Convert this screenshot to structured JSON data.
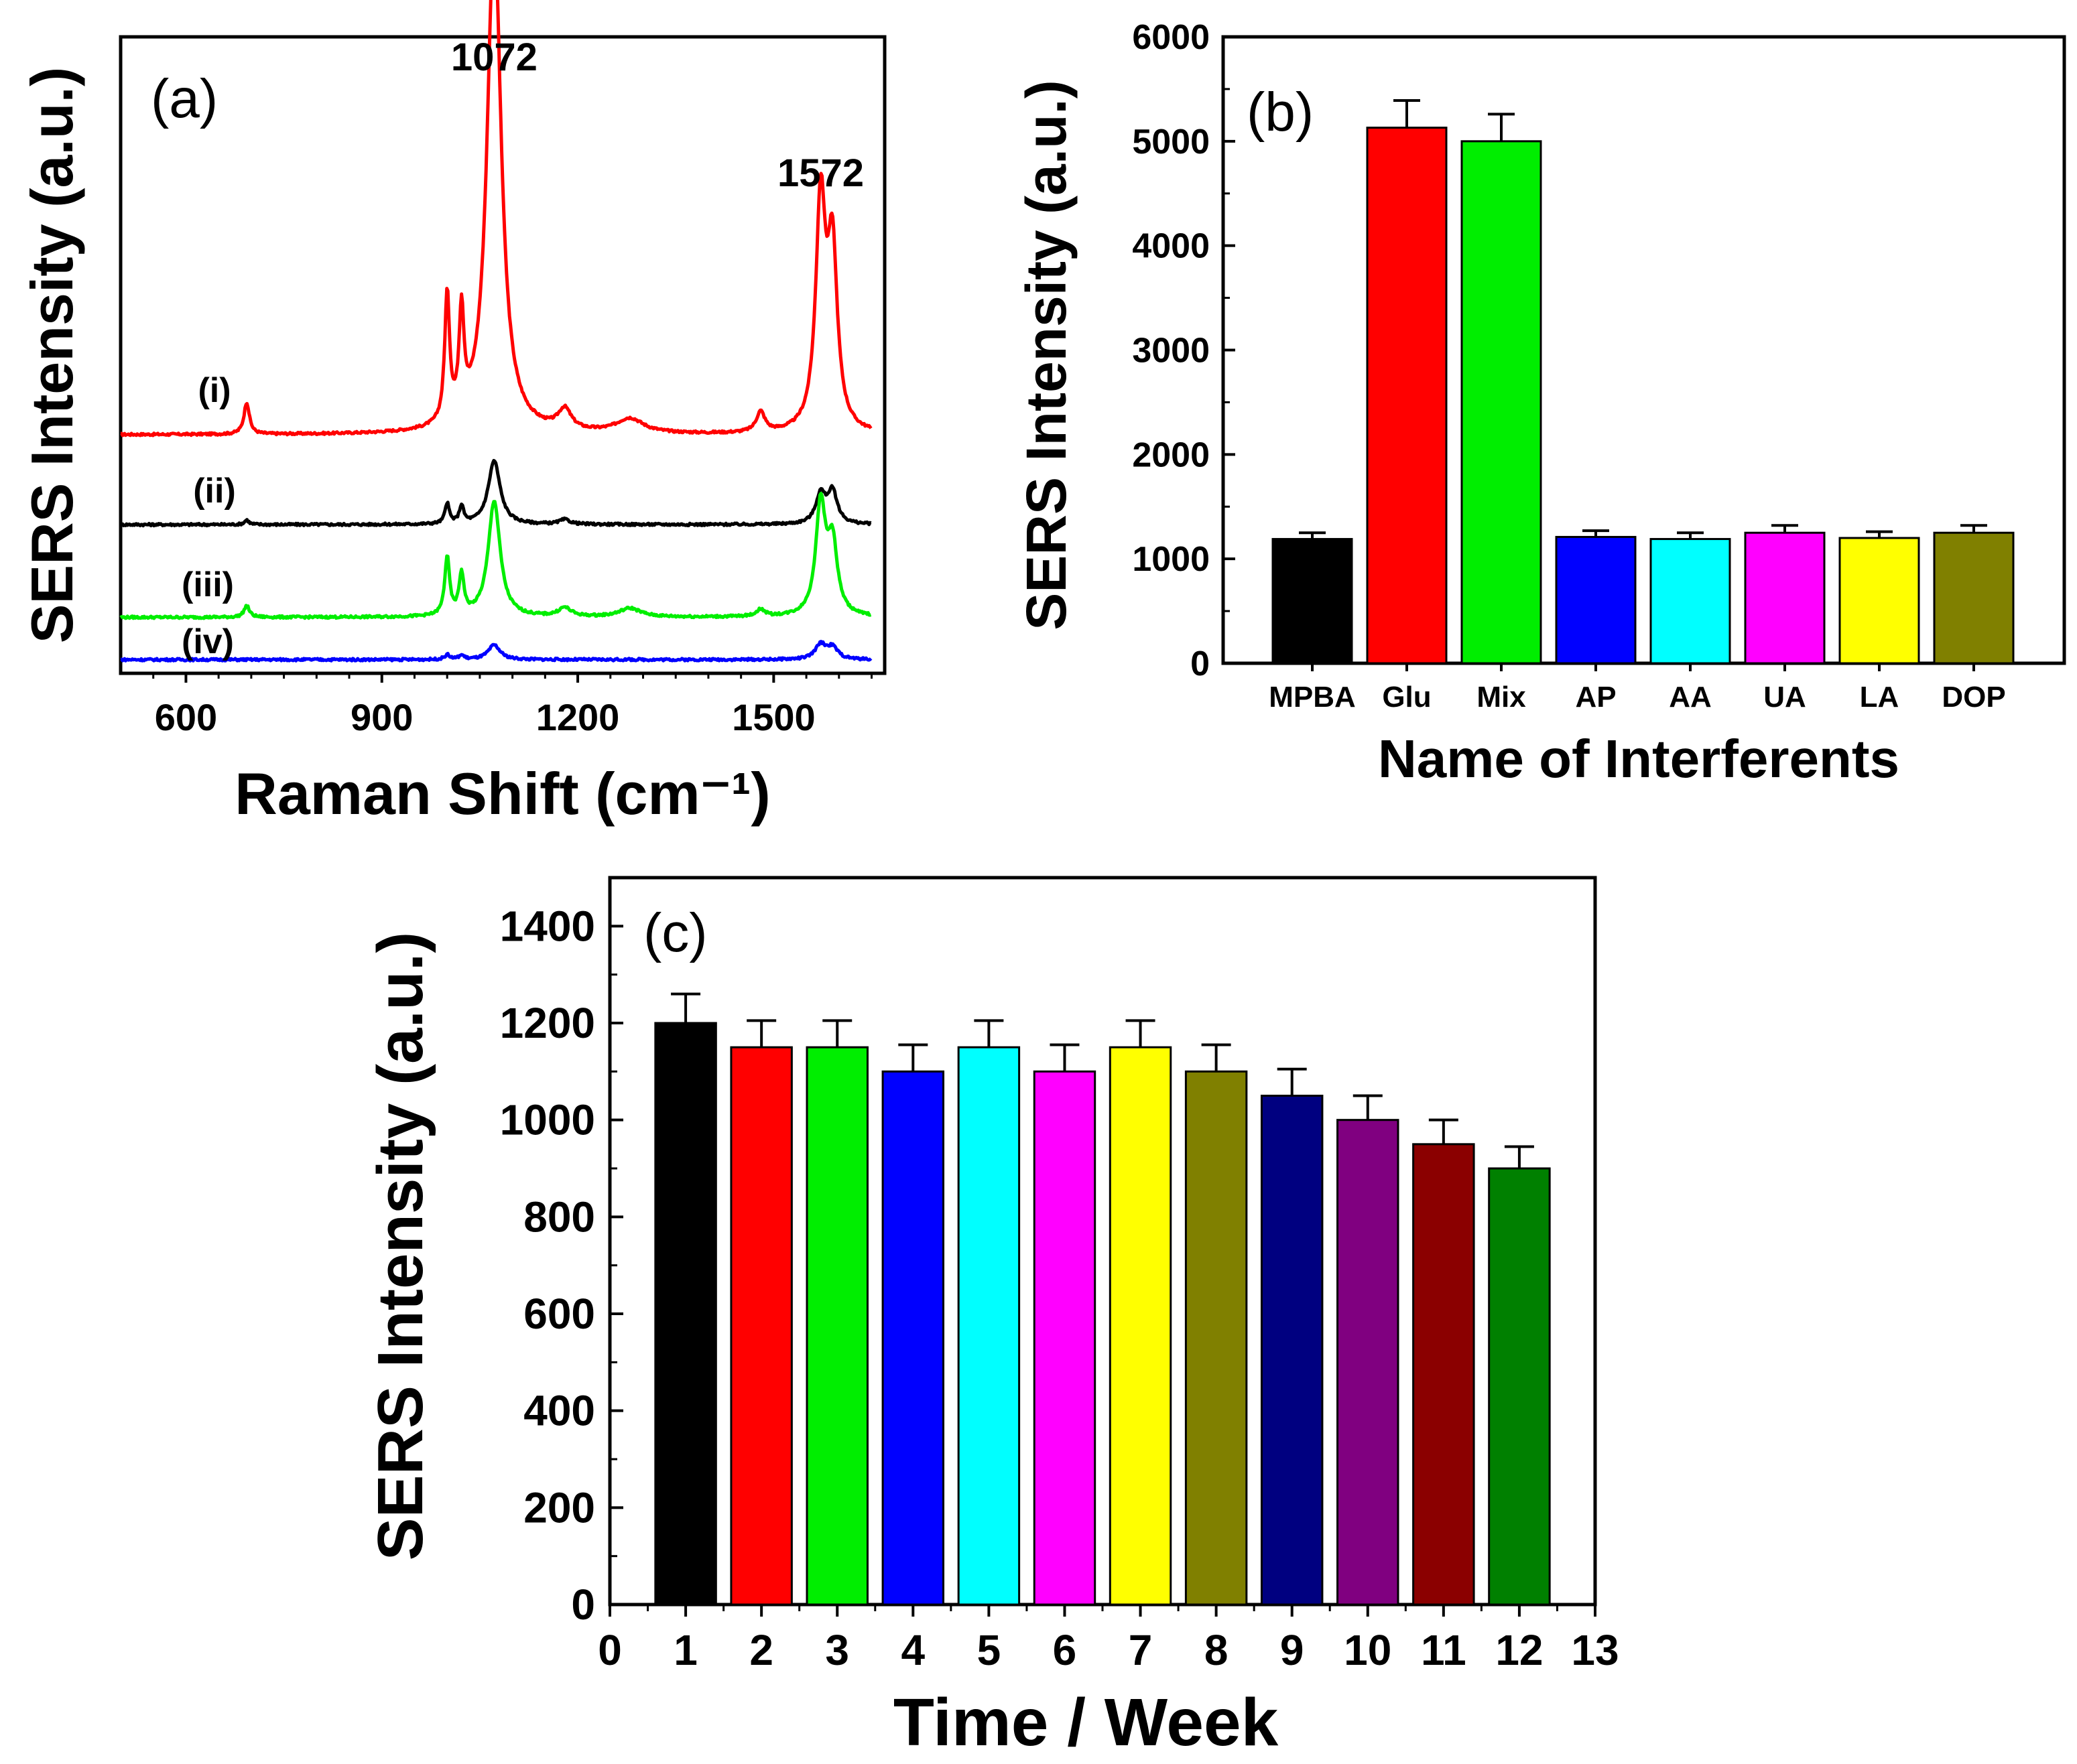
{
  "chart_data": [
    {
      "type": "line",
      "panel_label": "(a)",
      "xlabel": "Raman Shift (cm⁻¹)",
      "ylabel": "SERS Intensity (a.u.)",
      "xlim": [
        500,
        1670
      ],
      "xticks": [
        600,
        900,
        1200,
        1500
      ],
      "yticks_shown": false,
      "peak_annotations": [
        {
          "text": "1072",
          "x": 1072,
          "y": 1.0
        },
        {
          "text": "1572",
          "x": 1572,
          "y": 0.8
        }
      ],
      "series": [
        {
          "name": "(i)",
          "color": "#ff0000",
          "baseline": 0.4,
          "peaks": [
            [
              693,
              0.055,
              5
            ],
            [
              1000,
              0.22,
              4.5
            ],
            [
              1022,
              0.18,
              4.5
            ],
            [
              1072,
              0.87,
              13
            ],
            [
              1180,
              0.035,
              12
            ],
            [
              1280,
              0.025,
              25
            ],
            [
              1480,
              0.035,
              8
            ],
            [
              1572,
              0.39,
              9
            ],
            [
              1590,
              0.3,
              9
            ]
          ]
        },
        {
          "name": "(ii)",
          "color": "#000000",
          "baseline": 0.245,
          "peaks": [
            [
              693,
              0.008,
              4
            ],
            [
              1000,
              0.035,
              4
            ],
            [
              1022,
              0.03,
              4
            ],
            [
              1072,
              0.11,
              11
            ],
            [
              1180,
              0.008,
              10
            ],
            [
              1572,
              0.05,
              9
            ],
            [
              1590,
              0.055,
              9
            ]
          ]
        },
        {
          "name": "(iii)",
          "color": "#00ee00",
          "baseline": 0.085,
          "peaks": [
            [
              693,
              0.02,
              5
            ],
            [
              1000,
              0.1,
              4.5
            ],
            [
              1022,
              0.07,
              4.5
            ],
            [
              1072,
              0.2,
              11
            ],
            [
              1180,
              0.015,
              12
            ],
            [
              1280,
              0.015,
              20
            ],
            [
              1480,
              0.012,
              8
            ],
            [
              1572,
              0.19,
              9
            ],
            [
              1590,
              0.12,
              9
            ]
          ]
        },
        {
          "name": "(iv)",
          "color": "#0000ff",
          "baseline": 0.012,
          "peaks": [
            [
              1000,
              0.008,
              5
            ],
            [
              1022,
              0.007,
              5
            ],
            [
              1072,
              0.025,
              11
            ],
            [
              1572,
              0.025,
              10
            ],
            [
              1590,
              0.02,
              10
            ]
          ]
        }
      ]
    },
    {
      "type": "bar",
      "panel_label": "(b)",
      "xlabel": "Name of Interferents",
      "ylabel": "SERS Intensity (a.u.)",
      "ylim": [
        0,
        6000
      ],
      "yticks": [
        0,
        1000,
        2000,
        3000,
        4000,
        5000,
        6000
      ],
      "categories": [
        "MPBA",
        "Glu",
        "Mix",
        "AP",
        "AA",
        "UA",
        "LA",
        "DOP"
      ],
      "values": [
        1190,
        5130,
        5000,
        1210,
        1190,
        1250,
        1200,
        1250
      ],
      "errors": [
        60,
        260,
        260,
        60,
        60,
        70,
        60,
        70
      ],
      "colors": [
        "#000000",
        "#ff0000",
        "#00ee00",
        "#0000ff",
        "#00ffff",
        "#ff00ff",
        "#ffff00",
        "#808000"
      ]
    },
    {
      "type": "bar",
      "panel_label": "(c)",
      "xlabel": "Time / Week",
      "ylabel": "SERS Intensity (a.u.)",
      "xlim": [
        0,
        13
      ],
      "ylim": [
        0,
        1500
      ],
      "xticks": [
        0,
        1,
        2,
        3,
        4,
        5,
        6,
        7,
        8,
        9,
        10,
        11,
        12,
        13
      ],
      "yticks": [
        0,
        200,
        400,
        600,
        800,
        1000,
        1200,
        1400
      ],
      "categories": [
        1,
        2,
        3,
        4,
        5,
        6,
        7,
        8,
        9,
        10,
        11,
        12
      ],
      "values": [
        1200,
        1150,
        1150,
        1100,
        1150,
        1100,
        1150,
        1100,
        1050,
        1000,
        950,
        900
      ],
      "errors": [
        60,
        55,
        55,
        55,
        55,
        55,
        55,
        55,
        55,
        50,
        50,
        45
      ],
      "colors": [
        "#000000",
        "#ff0000",
        "#00ee00",
        "#0000ff",
        "#00ffff",
        "#ff00ff",
        "#ffff00",
        "#808000",
        "#000080",
        "#800080",
        "#8b0000",
        "#008000"
      ]
    }
  ]
}
